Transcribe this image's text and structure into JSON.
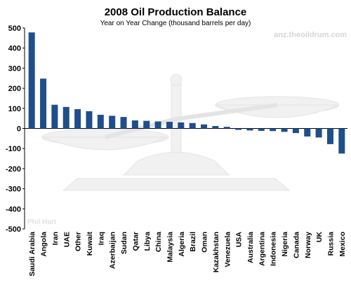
{
  "chart_data": {
    "type": "bar",
    "title": "2008 Oil Production Balance",
    "subtitle": "Year on Year Change (thousand barrels per day)",
    "categories": [
      "Saudi Arabia",
      "Angola",
      "Iran",
      "UAE",
      "Other",
      "Kuwait",
      "Iraq",
      "Azerbaijan",
      "Sudan",
      "Qatar",
      "Libya",
      "China",
      "Malaysia",
      "Algeria",
      "Brazil",
      "Oman",
      "Kazakhstan",
      "Venezuela",
      "USA",
      "Australia",
      "Argentina",
      "Indonesia",
      "Nigeria",
      "Canada",
      "Norway",
      "UK",
      "Russia",
      "Mexico"
    ],
    "values": [
      478,
      248,
      118,
      107,
      96,
      86,
      68,
      63,
      57,
      40,
      38,
      35,
      33,
      30,
      27,
      20,
      12,
      8,
      -7,
      -10,
      -12,
      -13,
      -17,
      -23,
      -40,
      -45,
      -78,
      -125
    ],
    "ylim": [
      -500,
      500
    ],
    "yticks": [
      500,
      400,
      300,
      200,
      100,
      0,
      -100,
      -200,
      -300,
      -400,
      -500
    ],
    "ylabel": "",
    "xlabel": "",
    "grid": false,
    "bar_color": "#1f4e8c",
    "background": "#ffffff"
  },
  "watermark": {
    "url": "anz.theoildrum.com",
    "author": "Phil Hart",
    "image": "balance-scale"
  }
}
